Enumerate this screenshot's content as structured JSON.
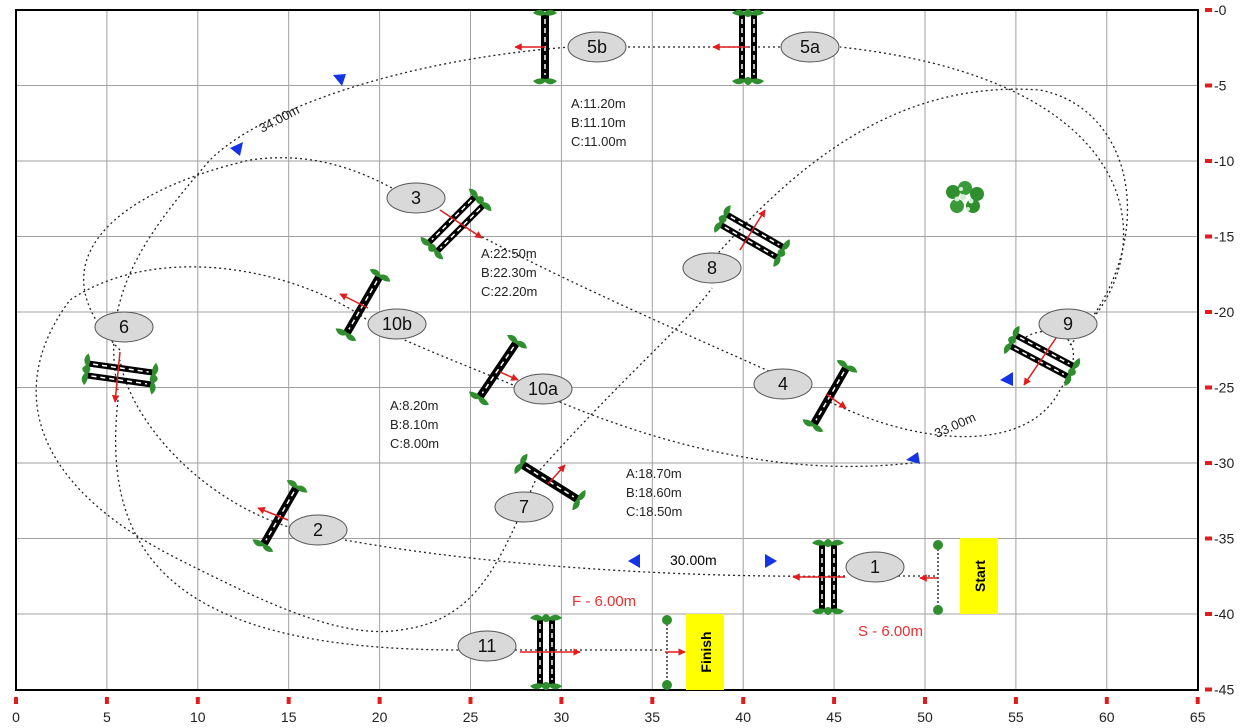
{
  "axes": {
    "x_ticks": [
      "0",
      "5",
      "10",
      "15",
      "20",
      "25",
      "30",
      "35",
      "40",
      "45",
      "50",
      "55",
      "60",
      "65"
    ],
    "y_ticks": [
      "0",
      "5",
      "10",
      "15",
      "20",
      "25",
      "30",
      "35",
      "40",
      "45"
    ]
  },
  "gates": [
    {
      "label": "1"
    },
    {
      "label": "2"
    },
    {
      "label": "3"
    },
    {
      "label": "4"
    },
    {
      "label": "5a"
    },
    {
      "label": "5b"
    },
    {
      "label": "6"
    },
    {
      "label": "7"
    },
    {
      "label": "8"
    },
    {
      "label": "9"
    },
    {
      "label": "10a"
    },
    {
      "label": "10b"
    },
    {
      "label": "11"
    }
  ],
  "markers": {
    "start": "Start",
    "finish": "Finish"
  },
  "measurements": {
    "m1": [
      "A:11.20m",
      "B:11.10m",
      "C:11.00m"
    ],
    "m2": [
      "A:22.50m",
      "B:22.30m",
      "C:22.20m"
    ],
    "m3": [
      "A:8.20m",
      "B:8.10m",
      "C:8.00m"
    ],
    "m4": [
      "A:18.70m",
      "B:18.60m",
      "C:18.50m"
    ]
  },
  "distances": {
    "d_34": "34.00m",
    "d_33": "33.00m",
    "d_30": "30.00m",
    "s": "S - 6.00m",
    "f": "F - 6.00m"
  },
  "colors": {
    "grid": "#a0a0a0",
    "frame": "#000000",
    "tick": "#e21b1b",
    "arrow": "#e21b1b",
    "distance_red": "#e8302f",
    "direction_blue": "#1432e6",
    "tree": "#2f8f2f",
    "label_fill": "#d9d9d9",
    "marker_yellow": "#ffff00"
  }
}
